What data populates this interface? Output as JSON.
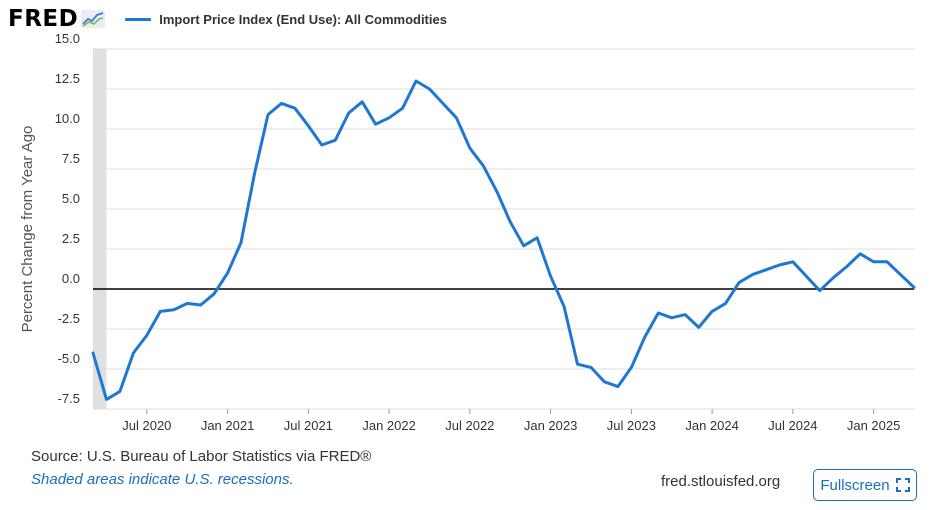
{
  "header": {
    "logo_text": "FRED",
    "legend_label": "Import Price Index (End Use): All Commodities"
  },
  "colors": {
    "series": "#1f77d4",
    "grid": "#dddddd",
    "recession": "#e0e0e0",
    "link": "#1a6ebd"
  },
  "chart_data": {
    "type": "line",
    "title": "",
    "xlabel": "",
    "ylabel": "Percent Change from Year Ago",
    "ylim": [
      -7.5,
      15.0
    ],
    "yticks": [
      {
        "value": -7.5,
        "label": "-7.5"
      },
      {
        "value": -5.0,
        "label": "-5.0"
      },
      {
        "value": -2.5,
        "label": "-2.5"
      },
      {
        "value": 0.0,
        "label": "0.0"
      },
      {
        "value": 2.5,
        "label": "2.5"
      },
      {
        "value": 5.0,
        "label": "5.0"
      },
      {
        "value": 7.5,
        "label": "7.5"
      },
      {
        "value": 10.0,
        "label": "10.0"
      },
      {
        "value": 12.5,
        "label": "12.5"
      },
      {
        "value": 15.0,
        "label": "15.0"
      }
    ],
    "xticks": [
      {
        "date": "2020-07",
        "label": "Jul 2020"
      },
      {
        "date": "2021-01",
        "label": "Jan 2021"
      },
      {
        "date": "2021-07",
        "label": "Jul 2021"
      },
      {
        "date": "2022-01",
        "label": "Jan 2022"
      },
      {
        "date": "2022-07",
        "label": "Jul 2022"
      },
      {
        "date": "2023-01",
        "label": "Jan 2023"
      },
      {
        "date": "2023-07",
        "label": "Jul 2023"
      },
      {
        "date": "2024-01",
        "label": "Jan 2024"
      },
      {
        "date": "2024-07",
        "label": "Jul 2024"
      },
      {
        "date": "2025-01",
        "label": "Jan 2025"
      }
    ],
    "recessions": [
      {
        "start": "2020-03",
        "end": "2020-04"
      }
    ],
    "zero_line": true,
    "grid": true,
    "series": [
      {
        "name": "Import Price Index (End Use): All Commodities",
        "x": [
          "2020-03",
          "2020-04",
          "2020-05",
          "2020-06",
          "2020-07",
          "2020-08",
          "2020-09",
          "2020-10",
          "2020-11",
          "2020-12",
          "2021-01",
          "2021-02",
          "2021-03",
          "2021-04",
          "2021-05",
          "2021-06",
          "2021-07",
          "2021-08",
          "2021-09",
          "2021-10",
          "2021-11",
          "2021-12",
          "2022-01",
          "2022-02",
          "2022-03",
          "2022-04",
          "2022-05",
          "2022-06",
          "2022-07",
          "2022-08",
          "2022-09",
          "2022-10",
          "2022-11",
          "2022-12",
          "2023-01",
          "2023-02",
          "2023-03",
          "2023-04",
          "2023-05",
          "2023-06",
          "2023-07",
          "2023-08",
          "2023-09",
          "2023-10",
          "2023-11",
          "2023-12",
          "2024-01",
          "2024-02",
          "2024-03",
          "2024-04",
          "2024-05",
          "2024-06",
          "2024-07",
          "2024-08",
          "2024-09",
          "2024-10",
          "2024-11",
          "2024-12",
          "2025-01",
          "2025-02",
          "2025-03",
          "2025-04"
        ],
        "values": [
          -4.0,
          -6.9,
          -6.4,
          -4.0,
          -2.9,
          -1.4,
          -1.3,
          -0.9,
          -1.0,
          -0.3,
          1.0,
          2.9,
          7.2,
          10.9,
          11.6,
          11.3,
          10.2,
          9.0,
          9.3,
          11.0,
          11.7,
          10.3,
          10.7,
          11.3,
          13.0,
          12.5,
          11.6,
          10.7,
          8.8,
          7.7,
          6.1,
          4.2,
          2.7,
          3.2,
          0.8,
          -1.1,
          -4.7,
          -4.9,
          -5.8,
          -6.1,
          -4.9,
          -3.0,
          -1.5,
          -1.8,
          -1.6,
          -2.4,
          -1.4,
          -0.9,
          0.4,
          0.9,
          1.2,
          1.5,
          1.7,
          0.8,
          -0.1,
          0.7,
          1.4,
          2.2,
          1.7,
          1.7,
          0.9,
          0.1
        ]
      }
    ]
  },
  "footer": {
    "source": "Source: U.S. Bureau of Labor Statistics via FRED®",
    "recession_note": "Shaded areas indicate U.S. recessions.",
    "site": "fred.stlouisfed.org",
    "fullscreen_label": "Fullscreen"
  }
}
